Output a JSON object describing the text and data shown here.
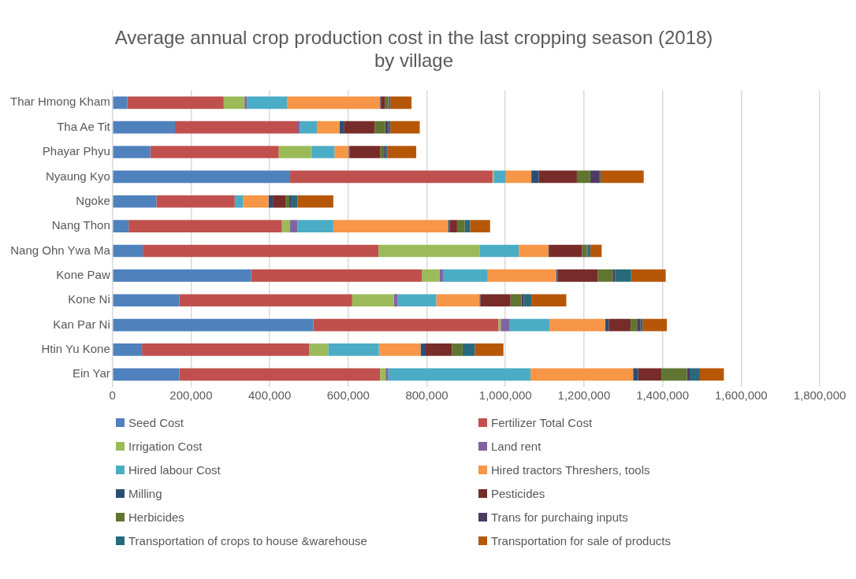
{
  "chart_data": {
    "type": "bar",
    "orientation": "horizontal",
    "stacked": true,
    "title": "Average annual crop production cost in the last cropping season (2018)\nby village",
    "categories": [
      "Thar Hmong Kham",
      "Tha Ae Tit",
      "Phayar Phyu",
      "Nyaung Kyo",
      "Ngoke",
      "Nang Thon",
      "Nang Ohn Ywa Ma",
      "Kone Paw",
      "Kone Ni",
      "Kan Par Ni",
      "Htin Yu Kone",
      "Ein Yar"
    ],
    "series": [
      {
        "name": "Seed Cost",
        "color": "#4f81bd",
        "values": [
          38000,
          159000,
          96000,
          452000,
          112000,
          41000,
          77000,
          353000,
          170000,
          511000,
          75000,
          170000
        ]
      },
      {
        "name": "Fertilizer Total Cost",
        "color": "#c0504d",
        "values": [
          245000,
          311000,
          327000,
          515000,
          199000,
          390000,
          600000,
          434000,
          440000,
          471000,
          426000,
          511000
        ]
      },
      {
        "name": "Irrigation Cost",
        "color": "#9bbb59",
        "values": [
          53000,
          0,
          84000,
          4000,
          0,
          21000,
          258000,
          46000,
          106000,
          6000,
          48000,
          14000
        ]
      },
      {
        "name": "Land rent",
        "color": "#8064a2",
        "values": [
          6000,
          7000,
          1000,
          0,
          0,
          19000,
          0,
          8000,
          10000,
          23000,
          0,
          7000
        ]
      },
      {
        "name": "Hired labour Cost",
        "color": "#4bacc6",
        "values": [
          102000,
          43000,
          57000,
          30000,
          21000,
          91000,
          99000,
          114000,
          98000,
          101000,
          129000,
          362000
        ]
      },
      {
        "name": "Hired tractors Threshers, tools",
        "color": "#f79646",
        "values": [
          237000,
          58000,
          36000,
          65000,
          65000,
          292000,
          76000,
          174000,
          110000,
          142000,
          106000,
          261000
        ]
      },
      {
        "name": "Milling",
        "color": "#2c4d75",
        "values": [
          2000,
          12000,
          3000,
          19000,
          11000,
          4000,
          2000,
          4000,
          2000,
          9000,
          13000,
          13000
        ]
      },
      {
        "name": "Pesticides",
        "color": "#772c2a",
        "values": [
          11000,
          77000,
          77000,
          97000,
          32000,
          19000,
          83000,
          102000,
          77000,
          56000,
          67000,
          59000
        ]
      },
      {
        "name": "Herbicides",
        "color": "#5f7530",
        "values": [
          8000,
          27000,
          10000,
          34000,
          10000,
          19000,
          12000,
          38000,
          28000,
          16000,
          27000,
          65000
        ]
      },
      {
        "name": "Trans for purchaing inputs",
        "color": "#4d3b62",
        "values": [
          2000,
          8000,
          4000,
          24000,
          4000,
          1000,
          2000,
          6000,
          6000,
          9000,
          null,
          7000
        ]
      },
      {
        "name": "Transportation of crops to house &warehouse",
        "color": "#276a7c",
        "values": [
          3000,
          5000,
          4000,
          2000,
          17000,
          13000,
          7000,
          41000,
          19000,
          5000,
          31000,
          26000
        ]
      },
      {
        "name": "Transportation for sale of products",
        "color": "#b65708",
        "values": [
          54000,
          75000,
          74000,
          110000,
          91000,
          51000,
          29000,
          88000,
          89000,
          62000,
          73000,
          61000
        ]
      }
    ],
    "xlim": [
      0,
      1800000
    ],
    "xticks": [
      0,
      {
        "value": 200000,
        "label": "200,000"
      },
      {
        "value": 400000,
        "label": "400,000"
      },
      {
        "value": 600000,
        "label": "600,000"
      },
      {
        "value": 800000,
        "label": "800,000"
      },
      {
        "value": 1000000,
        "label": "1,000,000"
      },
      {
        "value": 1200000,
        "label": "1,200,000"
      },
      {
        "value": 1400000,
        "label": "1,400,000"
      },
      {
        "value": 1600000,
        "label": "1,600,000"
      },
      {
        "value": 1800000,
        "label": "1,800,000"
      }
    ],
    "grid": "x",
    "legend": "bottom"
  }
}
